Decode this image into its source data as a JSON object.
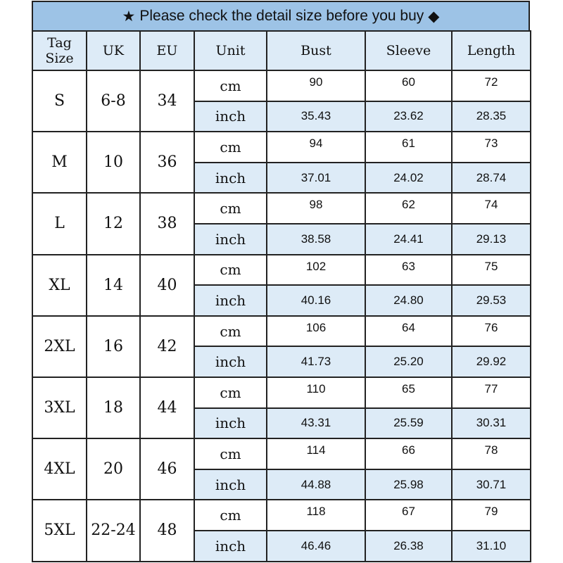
{
  "banner": {
    "star_icon": "★",
    "text": "Please check the detail size before you buy",
    "diamond_icon": "◆"
  },
  "colors": {
    "banner_bg": "#9dc3e6",
    "header_bg": "#ddebf7",
    "border": "#222222"
  },
  "headers": [
    "Tag Size",
    "UK",
    "EU",
    "Unit",
    "Bust",
    "Sleeve",
    "Length"
  ],
  "rows": [
    {
      "tag": "S",
      "uk": "6-8",
      "eu": "34",
      "cm": [
        "90",
        "60",
        "72"
      ],
      "inch": [
        "35.43",
        "23.62",
        "28.35"
      ]
    },
    {
      "tag": "M",
      "uk": "10",
      "eu": "36",
      "cm": [
        "94",
        "61",
        "73"
      ],
      "inch": [
        "37.01",
        "24.02",
        "28.74"
      ]
    },
    {
      "tag": "L",
      "uk": "12",
      "eu": "38",
      "cm": [
        "98",
        "62",
        "74"
      ],
      "inch": [
        "38.58",
        "24.41",
        "29.13"
      ]
    },
    {
      "tag": "XL",
      "uk": "14",
      "eu": "40",
      "cm": [
        "102",
        "63",
        "75"
      ],
      "inch": [
        "40.16",
        "24.80",
        "29.53"
      ]
    },
    {
      "tag": "2XL",
      "uk": "16",
      "eu": "42",
      "cm": [
        "106",
        "64",
        "76"
      ],
      "inch": [
        "41.73",
        "25.20",
        "29.92"
      ]
    },
    {
      "tag": "3XL",
      "uk": "18",
      "eu": "44",
      "cm": [
        "110",
        "65",
        "77"
      ],
      "inch": [
        "43.31",
        "25.59",
        "30.31"
      ]
    },
    {
      "tag": "4XL",
      "uk": "20",
      "eu": "46",
      "cm": [
        "114",
        "66",
        "78"
      ],
      "inch": [
        "44.88",
        "25.98",
        "30.71"
      ]
    },
    {
      "tag": "5XL",
      "uk": "22-24",
      "eu": "48",
      "cm": [
        "118",
        "67",
        "79"
      ],
      "inch": [
        "46.46",
        "26.38",
        "31.10"
      ]
    }
  ],
  "units": {
    "cm": "cm",
    "inch": "inch"
  }
}
